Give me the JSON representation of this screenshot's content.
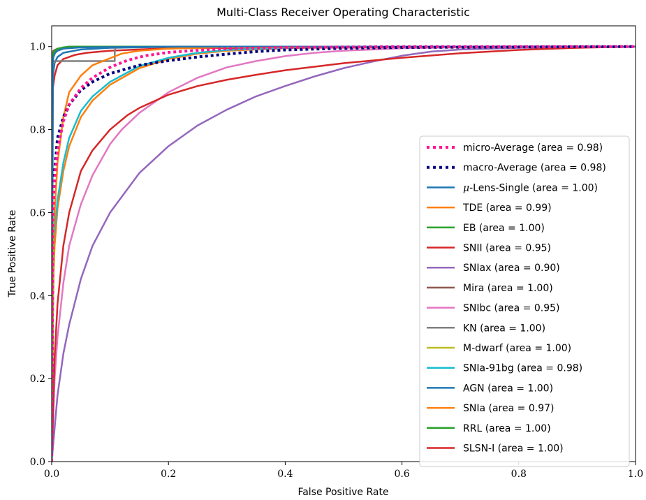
{
  "chart_data": {
    "type": "line",
    "title": "Multi-Class Receiver Operating Characteristic",
    "xlabel": "False Positive Rate",
    "ylabel": "True Positive Rate",
    "xlim": [
      0.0,
      1.0
    ],
    "ylim": [
      0.0,
      1.05
    ],
    "xticks": [
      "0.0",
      "0.2",
      "0.4",
      "0.6",
      "0.8",
      "1.0"
    ],
    "yticks": [
      "0.0",
      "0.2",
      "0.4",
      "0.6",
      "0.8",
      "1.0"
    ],
    "grid": false,
    "legend_position": "lower right",
    "series": [
      {
        "name": "micro-Average (area = 0.98)",
        "color": "#ff1493",
        "style": "dotted",
        "x": [
          0,
          0.002,
          0.005,
          0.01,
          0.02,
          0.03,
          0.05,
          0.07,
          0.1,
          0.13,
          0.16,
          0.2,
          0.25,
          0.3,
          0.4,
          0.5,
          0.6,
          0.8,
          1.0
        ],
        "y": [
          0,
          0.6,
          0.68,
          0.75,
          0.82,
          0.86,
          0.9,
          0.925,
          0.95,
          0.967,
          0.978,
          0.986,
          0.991,
          0.995,
          0.998,
          0.999,
          1.0,
          1.0,
          1.0
        ]
      },
      {
        "name": "macro-Average (area = 0.98)",
        "color": "#000080",
        "style": "dotted",
        "x": [
          0,
          0.002,
          0.005,
          0.01,
          0.02,
          0.03,
          0.05,
          0.07,
          0.1,
          0.15,
          0.2,
          0.25,
          0.3,
          0.35,
          0.4,
          0.5,
          0.6,
          0.8,
          1.0
        ],
        "y": [
          0,
          0.6,
          0.7,
          0.78,
          0.83,
          0.86,
          0.895,
          0.915,
          0.935,
          0.955,
          0.966,
          0.975,
          0.982,
          0.988,
          0.992,
          0.996,
          0.998,
          0.999,
          1.0
        ]
      },
      {
        "name": "$\\mu$-Lens-Single (area = 1.00)",
        "color": "#1f77b4",
        "style": "solid",
        "x": [
          0,
          0.001,
          0.003,
          0.006,
          0.01,
          0.02,
          0.05,
          0.2,
          1.0
        ],
        "y": [
          0,
          0.95,
          0.975,
          0.985,
          0.99,
          0.995,
          0.998,
          1.0,
          1.0
        ]
      },
      {
        "name": "TDE (area = 0.99)",
        "color": "#ff7f0e",
        "style": "solid",
        "x": [
          0,
          0.002,
          0.005,
          0.01,
          0.02,
          0.03,
          0.05,
          0.07,
          0.1,
          0.12,
          0.15,
          0.2,
          0.3,
          1.0
        ],
        "y": [
          0,
          0.35,
          0.6,
          0.72,
          0.83,
          0.89,
          0.93,
          0.955,
          0.972,
          0.983,
          0.99,
          0.995,
          0.998,
          1.0
        ]
      },
      {
        "name": "EB (area = 1.00)",
        "color": "#2ca02c",
        "style": "solid",
        "x": [
          0,
          0.001,
          0.003,
          0.005,
          0.01,
          0.02,
          0.05,
          1.0
        ],
        "y": [
          0,
          0.97,
          0.985,
          0.99,
          0.995,
          0.998,
          1.0,
          1.0
        ]
      },
      {
        "name": "SNII (area = 0.95)",
        "color": "#d62728",
        "style": "solid",
        "x": [
          0,
          0.005,
          0.01,
          0.02,
          0.03,
          0.05,
          0.07,
          0.1,
          0.13,
          0.15,
          0.2,
          0.25,
          0.3,
          0.35,
          0.4,
          0.5,
          0.6,
          0.7,
          0.8,
          0.9,
          1.0
        ],
        "y": [
          0,
          0.25,
          0.38,
          0.52,
          0.6,
          0.7,
          0.75,
          0.8,
          0.835,
          0.852,
          0.884,
          0.905,
          0.92,
          0.932,
          0.943,
          0.96,
          0.973,
          0.984,
          0.992,
          0.997,
          1.0
        ]
      },
      {
        "name": "SNIax (area = 0.90)",
        "color": "#9467bd",
        "style": "solid",
        "x": [
          0,
          0.005,
          0.01,
          0.02,
          0.03,
          0.05,
          0.07,
          0.1,
          0.15,
          0.2,
          0.25,
          0.3,
          0.35,
          0.4,
          0.45,
          0.5,
          0.55,
          0.6,
          0.65,
          0.7,
          0.8,
          0.9,
          1.0
        ],
        "y": [
          0,
          0.08,
          0.16,
          0.26,
          0.33,
          0.44,
          0.52,
          0.6,
          0.695,
          0.76,
          0.81,
          0.848,
          0.88,
          0.905,
          0.928,
          0.948,
          0.964,
          0.978,
          0.988,
          0.993,
          0.997,
          0.999,
          1.0
        ]
      },
      {
        "name": "Mira (area = 1.00)",
        "color": "#8c564b",
        "style": "solid",
        "x": [
          0,
          0.001,
          0.003,
          0.01,
          0.03,
          1.0
        ],
        "y": [
          0,
          0.98,
          0.99,
          0.995,
          0.999,
          1.0
        ]
      },
      {
        "name": "SNIbc (area = 0.95)",
        "color": "#e377c2",
        "style": "solid",
        "x": [
          0,
          0.005,
          0.01,
          0.02,
          0.03,
          0.05,
          0.07,
          0.1,
          0.12,
          0.15,
          0.2,
          0.25,
          0.3,
          0.35,
          0.4,
          0.45,
          0.5,
          0.6,
          0.7,
          0.8,
          1.0
        ],
        "y": [
          0,
          0.2,
          0.3,
          0.43,
          0.52,
          0.62,
          0.69,
          0.765,
          0.8,
          0.84,
          0.89,
          0.925,
          0.95,
          0.965,
          0.977,
          0.985,
          0.99,
          0.996,
          0.998,
          0.999,
          1.0
        ]
      },
      {
        "name": "KN (area = 1.00)",
        "color": "#7f7f7f",
        "style": "solid",
        "x": [
          0,
          0.0,
          0.005,
          0.005,
          0.108,
          0.108,
          0.11,
          1.0
        ],
        "y": [
          0,
          0.96,
          0.96,
          0.965,
          0.965,
          0.99,
          1.0,
          1.0
        ]
      },
      {
        "name": "M-dwarf (area = 1.00)",
        "color": "#bcbd22",
        "style": "solid",
        "x": [
          0,
          0.001,
          0.003,
          0.01,
          0.03,
          1.0
        ],
        "y": [
          0,
          0.975,
          0.99,
          0.995,
          0.999,
          1.0
        ]
      },
      {
        "name": "SNIa-91bg (area = 0.98)",
        "color": "#17becf",
        "style": "solid",
        "x": [
          0,
          0.003,
          0.005,
          0.01,
          0.02,
          0.03,
          0.05,
          0.07,
          0.1,
          0.15,
          0.2,
          0.25,
          0.3,
          0.4,
          0.5,
          1.0
        ],
        "y": [
          0,
          0.48,
          0.55,
          0.63,
          0.72,
          0.78,
          0.845,
          0.88,
          0.915,
          0.953,
          0.973,
          0.985,
          0.992,
          0.997,
          0.999,
          1.0
        ]
      },
      {
        "name": "AGN (area = 1.00)",
        "color": "#1f77b4",
        "style": "solid",
        "x": [
          0,
          0.002,
          0.005,
          0.01,
          0.02,
          0.05,
          0.1,
          0.2,
          1.0
        ],
        "y": [
          0,
          0.93,
          0.96,
          0.975,
          0.985,
          0.993,
          0.997,
          0.999,
          1.0
        ]
      },
      {
        "name": "SNIa (area = 0.97)",
        "color": "#ff7f0e",
        "style": "solid",
        "x": [
          0,
          0.003,
          0.005,
          0.01,
          0.02,
          0.03,
          0.05,
          0.07,
          0.1,
          0.15,
          0.2,
          0.25,
          0.3,
          0.4,
          0.5,
          1.0
        ],
        "y": [
          0,
          0.45,
          0.52,
          0.61,
          0.7,
          0.76,
          0.83,
          0.87,
          0.908,
          0.948,
          0.97,
          0.983,
          0.99,
          0.996,
          0.999,
          1.0
        ]
      },
      {
        "name": "RRL (area = 1.00)",
        "color": "#2ca02c",
        "style": "solid",
        "x": [
          0,
          0.001,
          0.003,
          0.005,
          0.01,
          0.02,
          0.03,
          1.0
        ],
        "y": [
          0,
          0.96,
          0.98,
          0.988,
          0.994,
          0.998,
          1.0,
          1.0
        ]
      },
      {
        "name": "SLSN-I (area = 1.00)",
        "color": "#d62728",
        "style": "solid",
        "x": [
          0,
          0.002,
          0.005,
          0.01,
          0.02,
          0.04,
          0.06,
          0.1,
          0.2,
          1.0
        ],
        "y": [
          0,
          0.9,
          0.93,
          0.955,
          0.97,
          0.98,
          0.985,
          0.99,
          0.996,
          1.0
        ]
      }
    ]
  }
}
